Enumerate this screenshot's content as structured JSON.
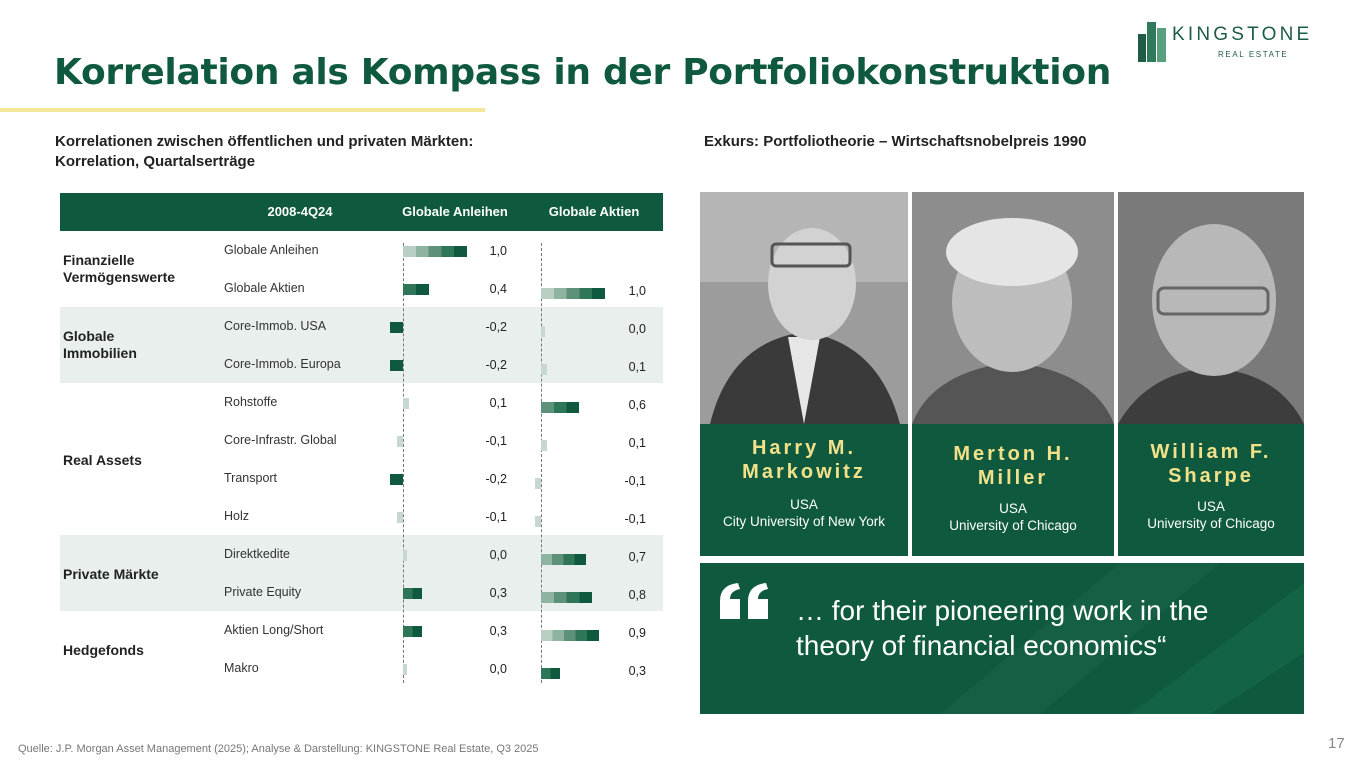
{
  "title": "Korrelation als Kompass in der Portfoliokonstruktion",
  "logo": {
    "name": "KINGSTONE",
    "sub": "REAL ESTATE"
  },
  "left_heading": {
    "line1": "Korrelationen zwischen öffentlichen und privaten Märkten:",
    "line2": "Korrelation, Quartalserträge"
  },
  "right_heading": "Exkurs: Portfoliotheorie – Wirtschaftsnobelpreis 1990",
  "table": {
    "headers": {
      "period": "2008-4Q24",
      "bonds": "Globale Anleihen",
      "equities": "Globale Aktien"
    },
    "groups": [
      {
        "line1": "Finanzielle",
        "line2": "Vermögenswerte"
      },
      {
        "line1": "Globale",
        "line2": "Immobilien"
      },
      {
        "line1": "Real Assets",
        "line2": ""
      },
      {
        "line1": "Private Märkte",
        "line2": ""
      },
      {
        "line1": "Hedgefonds",
        "line2": ""
      }
    ],
    "rows": [
      {
        "label": "Globale Anleihen",
        "bonds_label": "1,0",
        "equities_label": ""
      },
      {
        "label": "Globale Aktien",
        "bonds_label": "0,4",
        "equities_label": "1,0"
      },
      {
        "label": "Core-Immob. USA",
        "bonds_label": "-0,2",
        "equities_label": "0,0"
      },
      {
        "label": "Core-Immob. Europa",
        "bonds_label": "-0,2",
        "equities_label": "0,1"
      },
      {
        "label": "Rohstoffe",
        "bonds_label": "0,1",
        "equities_label": "0,6"
      },
      {
        "label": "Core-Infrastr. Global",
        "bonds_label": "-0,1",
        "equities_label": "0,1"
      },
      {
        "label": "Transport",
        "bonds_label": "-0,2",
        "equities_label": "-0,1"
      },
      {
        "label": "Holz",
        "bonds_label": "-0,1",
        "equities_label": "-0,1"
      },
      {
        "label": "Direktkedite",
        "bonds_label": "0,0",
        "equities_label": "0,7"
      },
      {
        "label": "Private Equity",
        "bonds_label": "0,3",
        "equities_label": "0,8"
      },
      {
        "label": "Aktien Long/Short",
        "bonds_label": "0,3",
        "equities_label": "0,9"
      },
      {
        "label": "Makro",
        "bonds_label": "0,0",
        "equities_label": "0,3"
      }
    ]
  },
  "chart_data": {
    "type": "bar",
    "categories": [
      "Globale Anleihen",
      "Globale Aktien",
      "Core-Immob. USA",
      "Core-Immob. Europa",
      "Rohstoffe",
      "Core-Infrastr. Global",
      "Transport",
      "Holz",
      "Direktkedite",
      "Private Equity",
      "Aktien Long/Short",
      "Makro"
    ],
    "series": [
      {
        "name": "Globale Anleihen",
        "values": [
          1.0,
          0.4,
          -0.2,
          -0.2,
          0.1,
          -0.1,
          -0.2,
          -0.1,
          0.0,
          0.3,
          0.3,
          0.0
        ]
      },
      {
        "name": "Globale Aktien",
        "values": [
          null,
          1.0,
          0.0,
          0.1,
          0.6,
          0.1,
          -0.1,
          -0.1,
          0.7,
          0.8,
          0.9,
          0.3
        ]
      }
    ],
    "title": "2008-4Q24",
    "xlim": [
      -0.2,
      1.0
    ]
  },
  "laureates": [
    {
      "name_line1": "Harry M.",
      "name_line2": "Markowitz",
      "country": "USA",
      "university": "City University of New York"
    },
    {
      "name_line1": "Merton H.",
      "name_line2": "Miller",
      "country": "USA",
      "university": "University of Chicago"
    },
    {
      "name_line1": "William F.",
      "name_line2": "Sharpe",
      "country": "USA",
      "university": "University of Chicago"
    }
  ],
  "quote": {
    "line1": "… for their pioneering work in the",
    "line2": "theory of financial economics“"
  },
  "source": "Quelle: J.P. Morgan Asset Management (2025); Analyse & Darstellung: KINGSTONE Real Estate, Q3 2025",
  "page_number": "17",
  "colors": {
    "brand_green": "#0f5a3f",
    "accent_yellow": "#f3e18a",
    "band": "#e8efec"
  }
}
